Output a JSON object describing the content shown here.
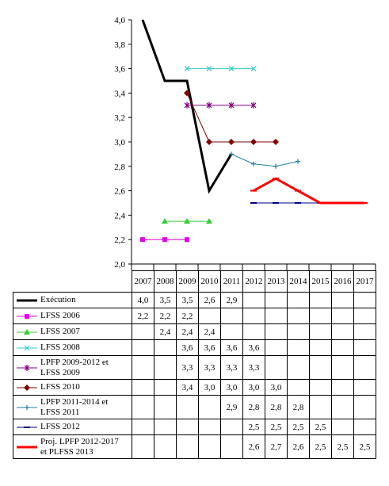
{
  "chart_data": {
    "type": "line",
    "x": [
      "2007",
      "2008",
      "2009",
      "2010",
      "2011",
      "2012",
      "2013",
      "2014",
      "2015",
      "2016",
      "2017"
    ],
    "ylim": [
      2.0,
      4.0
    ],
    "yticks": [
      "2,0",
      "2,2",
      "2,4",
      "2,6",
      "2,8",
      "3,0",
      "3,2",
      "3,4",
      "3,6",
      "3,8",
      "4,0"
    ],
    "grid": false,
    "legend": "table-below",
    "series": [
      {
        "name": "Exécution",
        "color": "#000000",
        "marker": "none",
        "width": 3,
        "values": [
          4.0,
          3.5,
          3.5,
          2.6,
          2.9,
          null,
          null,
          null,
          null,
          null,
          null
        ],
        "labels": [
          "4,0",
          "3,5",
          "3,5",
          "2,6",
          "2,9",
          "",
          "",
          "",
          "",
          "",
          ""
        ]
      },
      {
        "name": "LFSS 2006",
        "color": "#e600e6",
        "marker": "square",
        "width": 1,
        "values": [
          2.2,
          2.2,
          2.2,
          null,
          null,
          null,
          null,
          null,
          null,
          null,
          null
        ],
        "labels": [
          "2,2",
          "2,2",
          "2,2",
          "",
          "",
          "",
          "",
          "",
          "",
          "",
          ""
        ]
      },
      {
        "name": "LFSS 2007",
        "color": "#33cc33",
        "marker": "triangle",
        "width": 1,
        "values": [
          null,
          2.35,
          2.35,
          2.35,
          null,
          null,
          null,
          null,
          null,
          null,
          null
        ],
        "labels": [
          "",
          "2,4",
          "2,4",
          "2,4",
          "",
          "",
          "",
          "",
          "",
          "",
          ""
        ]
      },
      {
        "name": "LFSS 2008",
        "color": "#33cccc",
        "marker": "x",
        "width": 1,
        "values": [
          null,
          null,
          3.6,
          3.6,
          3.6,
          3.6,
          null,
          null,
          null,
          null,
          null
        ],
        "labels": [
          "",
          "",
          "3,6",
          "3,6",
          "3,6",
          "3,6",
          "",
          "",
          "",
          "",
          ""
        ]
      },
      {
        "name": "LPFP 2009-2012 et\nLFSS 2009",
        "color": "#800080",
        "marker": "star",
        "width": 1,
        "values": [
          null,
          null,
          3.3,
          3.3,
          3.3,
          3.3,
          null,
          null,
          null,
          null,
          null
        ],
        "labels": [
          "",
          "",
          "3,3",
          "3,3",
          "3,3",
          "3,3",
          "",
          "",
          "",
          "",
          ""
        ]
      },
      {
        "name": "LFSS 2010",
        "color": "#800000",
        "marker": "diamond",
        "width": 1,
        "values": [
          null,
          null,
          3.4,
          3.0,
          3.0,
          3.0,
          3.0,
          null,
          null,
          null,
          null
        ],
        "labels": [
          "",
          "",
          "3,4",
          "3,0",
          "3,0",
          "3,0",
          "3,0",
          "",
          "",
          "",
          ""
        ]
      },
      {
        "name": "LPFP 2011-2014 et\nLFSS 2011",
        "color": "#1a7fa0",
        "marker": "plus",
        "width": 1,
        "values": [
          null,
          null,
          null,
          null,
          2.9,
          2.82,
          2.8,
          2.84,
          null,
          null,
          null
        ],
        "labels": [
          "",
          "",
          "",
          "",
          "2,9",
          "2,8",
          "2,8",
          "2,8",
          "",
          "",
          ""
        ]
      },
      {
        "name": "LFSS 2012",
        "color": "#000080",
        "marker": "dash",
        "width": 1,
        "values": [
          null,
          null,
          null,
          null,
          null,
          2.5,
          2.5,
          2.5,
          2.5,
          null,
          null
        ],
        "labels": [
          "",
          "",
          "",
          "",
          "",
          "2,5",
          "2,5",
          "2,5",
          "2,5",
          "",
          ""
        ]
      },
      {
        "name": "Proj. LPFP 2012-2017\net PLFSS 2013",
        "color": "#ff0000",
        "marker": "dash",
        "width": 3,
        "values": [
          null,
          null,
          null,
          null,
          null,
          2.6,
          2.7,
          2.6,
          2.5,
          2.5,
          2.5
        ],
        "labels": [
          "",
          "",
          "",
          "",
          "",
          "2,6",
          "2,7",
          "2,6",
          "2,5",
          "2,5",
          "2,5"
        ]
      }
    ]
  }
}
